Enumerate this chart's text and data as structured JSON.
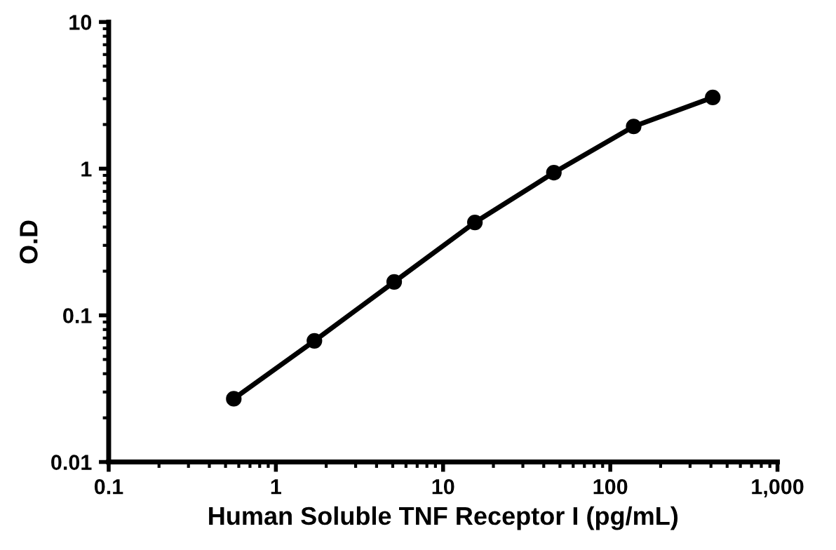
{
  "chart_data": {
    "type": "line",
    "xlabel": "Human Soluble TNF Receptor I (pg/mL)",
    "ylabel": "O.D",
    "x": [
      0.56,
      1.7,
      5.1,
      15.5,
      46,
      138,
      410
    ],
    "series": [
      {
        "color": "#000000",
        "values": [
          0.027,
          0.067,
          0.169,
          0.43,
          0.94,
          1.94,
          3.06
        ]
      }
    ],
    "log": "xy",
    "marker": "circle",
    "line_style": "solid",
    "grid": false,
    "legend": false,
    "xlim": [
      0.1,
      1000
    ],
    "ylim": [
      0.01,
      10
    ],
    "xticks": [
      0.1,
      1,
      10,
      100,
      {
        "value": 1000,
        "label": "1,000"
      }
    ],
    "yticks": [
      0.01,
      0.1,
      1,
      10
    ]
  }
}
